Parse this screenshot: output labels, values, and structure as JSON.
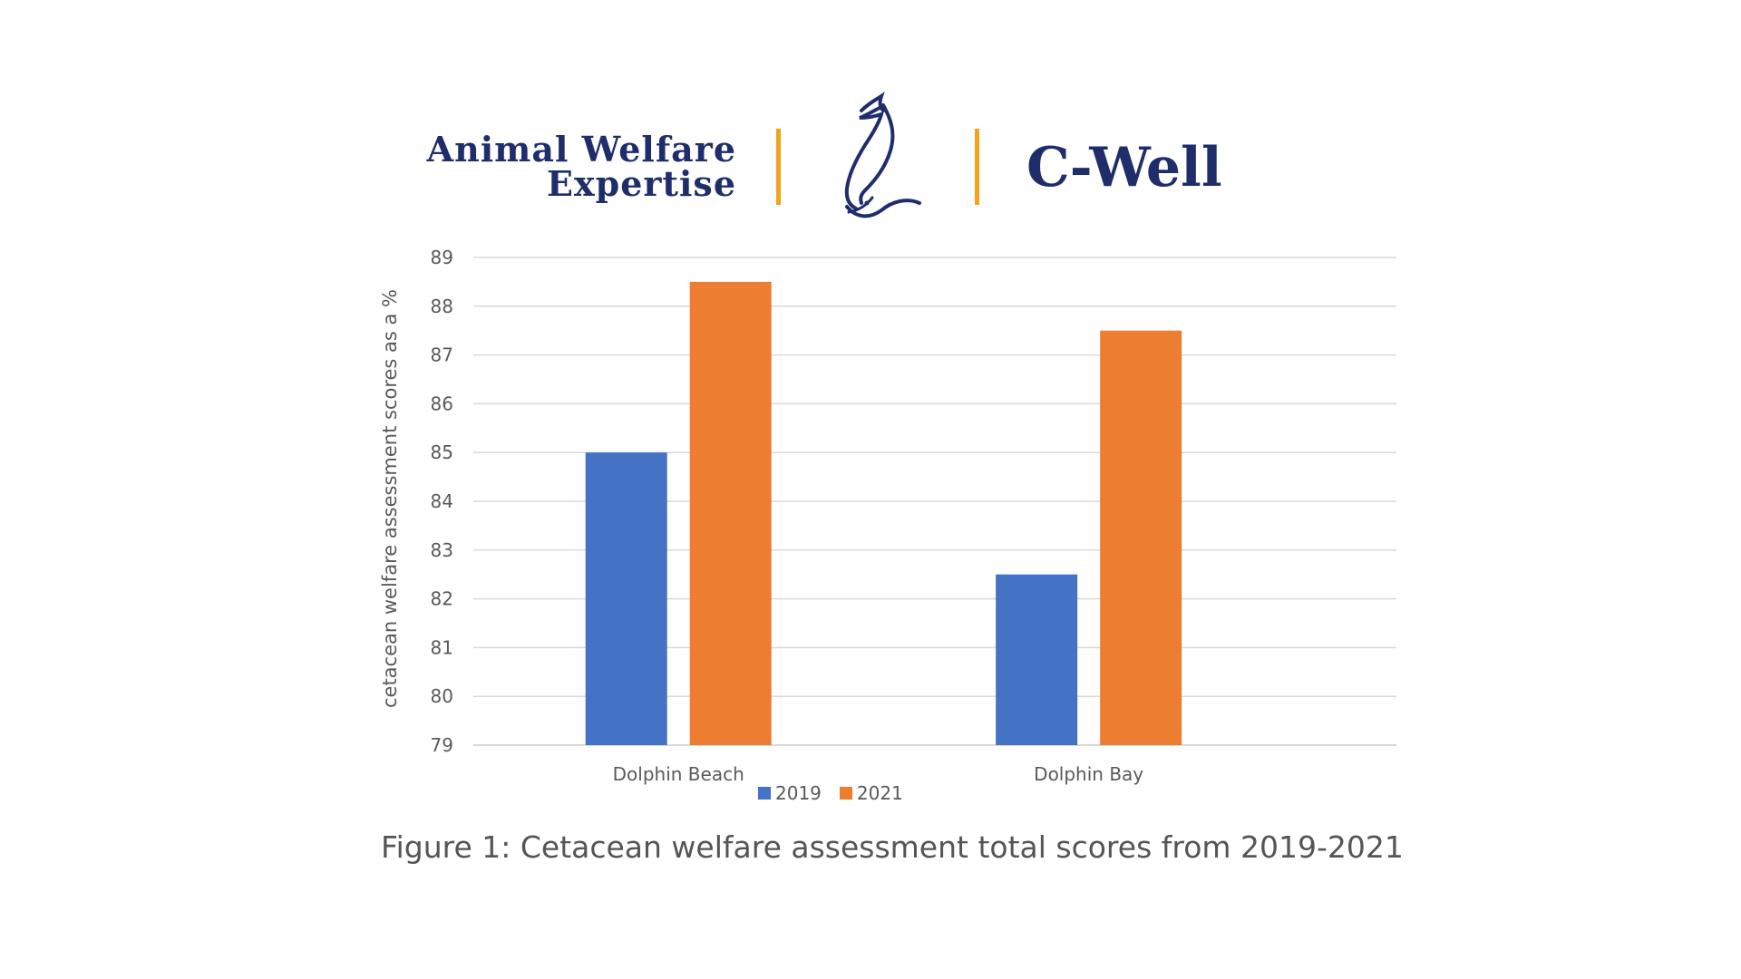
{
  "header": {
    "left_brand_line1": "Animal Welfare",
    "left_brand_line2": "Expertise",
    "right_brand": "C-Well",
    "brand_color": "#1f2d6b",
    "divider_color": "#f3a21b",
    "logo_icon": "dolphin-logo-icon"
  },
  "chart_data": {
    "type": "bar",
    "categories": [
      "Dolphin Beach",
      "Dolphin Bay"
    ],
    "series": [
      {
        "name": "2019",
        "values": [
          85,
          82.5
        ],
        "color": "#4472c4"
      },
      {
        "name": "2021",
        "values": [
          88.5,
          87.5
        ],
        "color": "#ed7d31"
      }
    ],
    "ylabel": "cetacean welfare assessment scores as a %",
    "xlabel": "",
    "ylim": [
      79,
      89
    ],
    "yticks": [
      79,
      80,
      81,
      82,
      83,
      84,
      85,
      86,
      87,
      88,
      89
    ],
    "grid": true,
    "legend_position": "bottom"
  },
  "caption": "Figure 1: Cetacean welfare assessment total scores from 2019-2021"
}
